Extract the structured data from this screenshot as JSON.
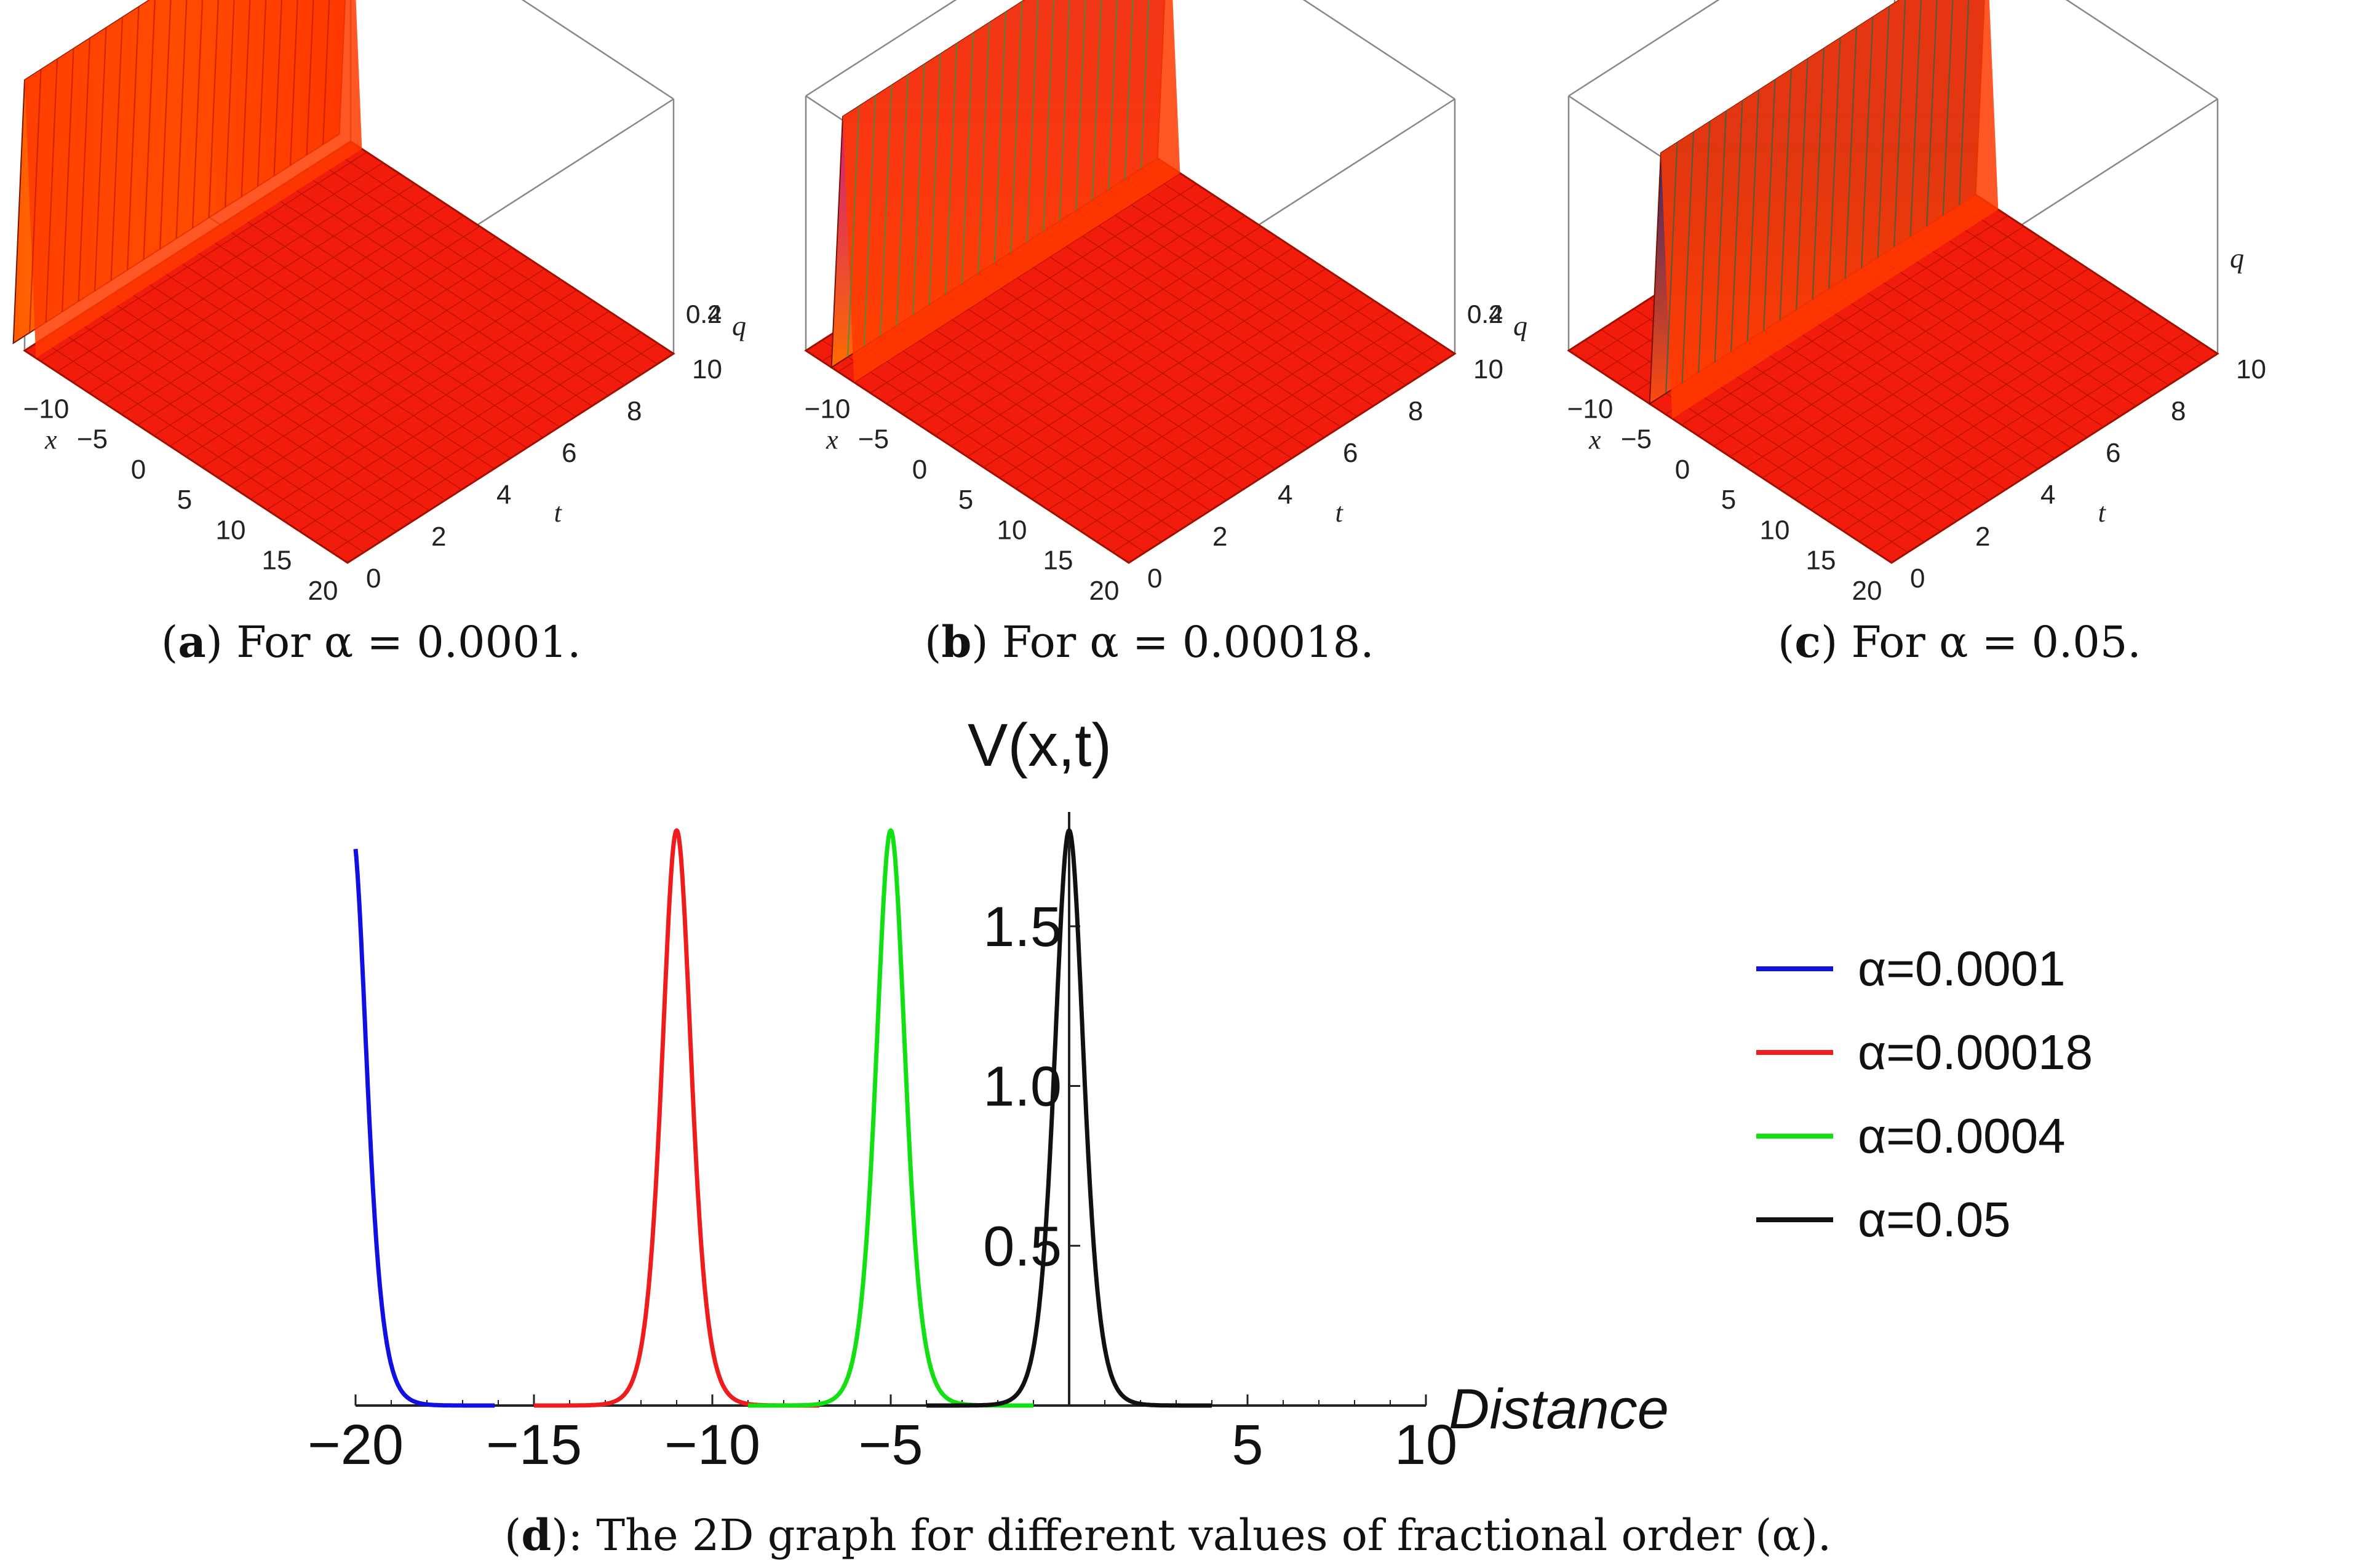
{
  "panels_3d": [
    {
      "id": "a",
      "caption_letter": "a",
      "caption_text": " For   α = 0.0001.",
      "zlabel": "q",
      "xlabel": "x",
      "tlabel": "t",
      "x_ticks": [
        "−10",
        "−5",
        "0",
        "5",
        "10",
        "15",
        "20"
      ],
      "t_ticks": [
        "0",
        "2",
        "4",
        "6",
        "8",
        "10"
      ],
      "z_ticks": [
        "0.4",
        "0.2"
      ],
      "soliton_x": -15
    },
    {
      "id": "b",
      "caption_letter": "b",
      "caption_text": " For   α = 0.00018.",
      "zlabel": "q",
      "xlabel": "x",
      "tlabel": "t",
      "x_ticks": [
        "−10",
        "−5",
        "0",
        "5",
        "10",
        "15",
        "20"
      ],
      "t_ticks": [
        "0",
        "2",
        "4",
        "6",
        "8",
        "10"
      ],
      "z_ticks": [
        "0.4",
        "0.2"
      ],
      "soliton_x": -11
    },
    {
      "id": "c",
      "caption_letter": "c",
      "caption_text": " For   α = 0.05.",
      "zlabel": "q",
      "xlabel": "x",
      "tlabel": "t",
      "x_ticks": [
        "−10",
        "−5",
        "0",
        "5",
        "10",
        "15",
        "20"
      ],
      "t_ticks": [
        "0",
        "2",
        "4",
        "6",
        "8",
        "10"
      ],
      "z_ticks": [],
      "soliton_x": -5
    }
  ],
  "caption_d_letter": "d",
  "caption_d_text": "): The 2D graph for different values of fractional order  (α).",
  "chart_data": {
    "type": "line",
    "title": "V(x,t)",
    "xlabel": "Distance",
    "ylabel": "V(x,t)",
    "xlim": [
      -20,
      10
    ],
    "ylim": [
      0,
      1.8
    ],
    "x_ticks": [
      -20,
      -15,
      -10,
      -5,
      5,
      10
    ],
    "x_tick_labels": [
      "−20",
      "−15",
      "−10",
      "−5",
      "5",
      "10"
    ],
    "y_ticks": [
      0.5,
      1.0,
      1.5
    ],
    "y_tick_labels": [
      "0.5",
      "1.0",
      "1.5"
    ],
    "peak_value": 1.8,
    "series": [
      {
        "name": "α=0.0001",
        "color": "#1010e0",
        "center": -20.1,
        "width": 0.55
      },
      {
        "name": "α=0.00018",
        "color": "#ee1c1c",
        "center": -11.0,
        "width": 0.55
      },
      {
        "name": "α=0.0004",
        "color": "#12e012",
        "center": -5.0,
        "width": 0.55
      },
      {
        "name": "α=0.05",
        "color": "#111111",
        "center": 0.0,
        "width": 0.55
      }
    ],
    "legend_position": "right"
  }
}
